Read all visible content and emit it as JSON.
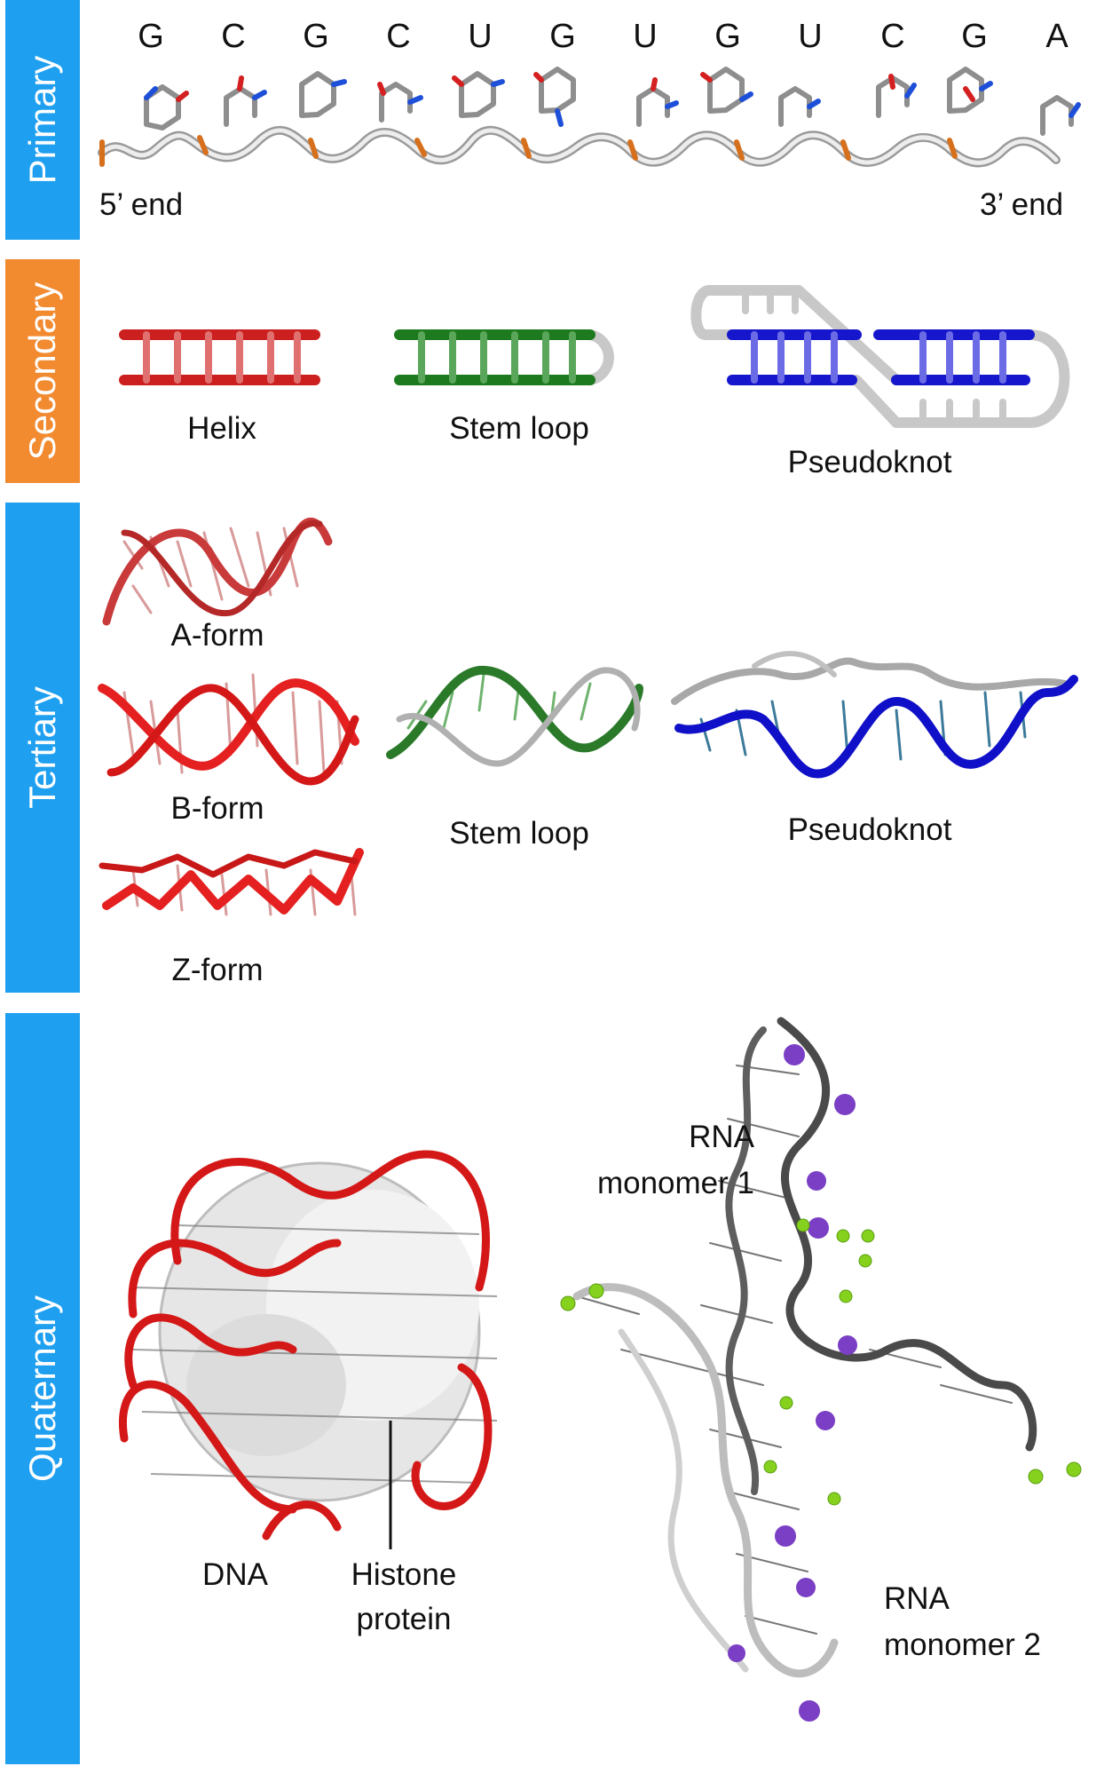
{
  "colors": {
    "primary_bar": "#1e9ff0",
    "secondary_bar": "#f28a30",
    "tertiary_bar": "#1e9ff0",
    "quaternary_bar": "#1e9ff0",
    "helix": "#cc1f1f",
    "stem_loop": "#1e7a1e",
    "pseudoknot": "#1616cc",
    "loop_gray": "#c8c8c8"
  },
  "sections": {
    "primary": "Primary",
    "secondary": "Secondary",
    "tertiary": "Tertiary",
    "quaternary": "Quaternary"
  },
  "primary": {
    "sequence": [
      "G",
      "C",
      "G",
      "C",
      "U",
      "G",
      "U",
      "G",
      "U",
      "C",
      "G",
      "A"
    ],
    "five_prime": "5’ end",
    "three_prime": "3’ end"
  },
  "secondary": {
    "helix": "Helix",
    "stem_loop": "Stem loop",
    "pseudoknot": "Pseudoknot"
  },
  "tertiary": {
    "a_form": "A-form",
    "b_form": "B-form",
    "z_form": "Z-form",
    "stem_loop": "Stem loop",
    "pseudoknot": "Pseudoknot"
  },
  "quaternary": {
    "dna": "DNA",
    "histone_line1": "Histone",
    "histone_line2": "protein",
    "rna1_line1": "RNA",
    "rna1_line2": "monomer 1",
    "rna2_line1": "RNA",
    "rna2_line2": "monomer 2"
  }
}
